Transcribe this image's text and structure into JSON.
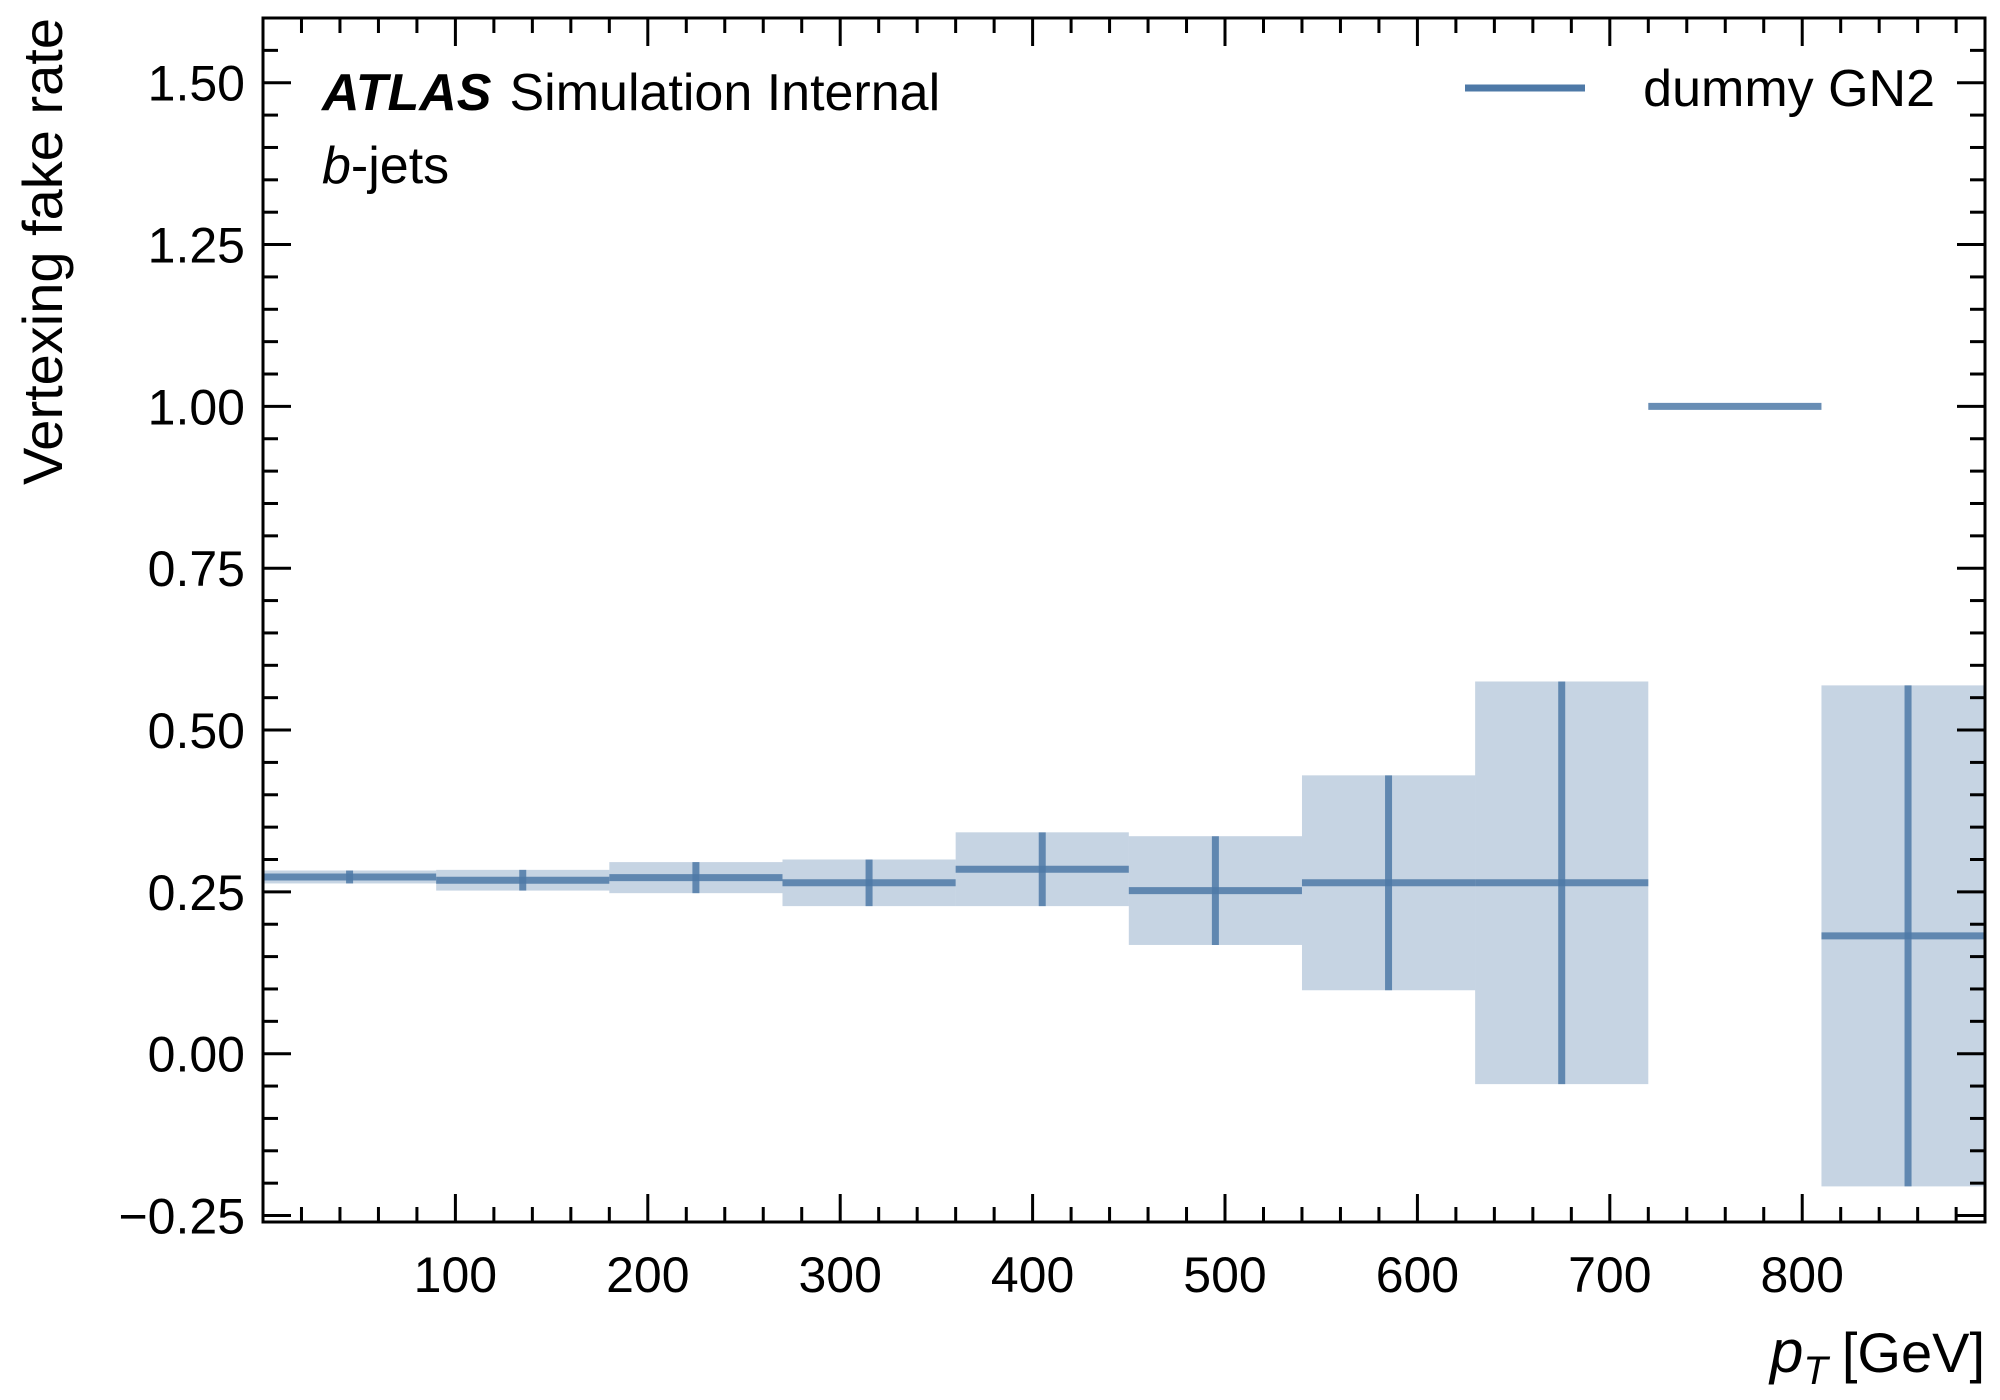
{
  "chart_data": {
    "type": "line",
    "xlabel_symbol": "p",
    "xlabel_subscript": "T",
    "xlabel_unit": "[GeV]",
    "ylabel": "Vertexing fake rate",
    "xlim": [
      0,
      895
    ],
    "ylim": [
      -0.26,
      1.6
    ],
    "xticks": [
      100,
      200,
      300,
      400,
      500,
      600,
      700,
      800
    ],
    "xtick_labels": [
      "100",
      "200",
      "300",
      "400",
      "500",
      "600",
      "700",
      "800"
    ],
    "yticks": [
      -0.25,
      0.0,
      0.25,
      0.5,
      0.75,
      1.0,
      1.25,
      1.5
    ],
    "ytick_labels": [
      "−0.25",
      "0.00",
      "0.25",
      "0.50",
      "0.75",
      "1.00",
      "1.25",
      "1.50"
    ],
    "annotation": {
      "experiment": "ATLAS",
      "status": "Simulation Internal",
      "jet_flavour_symbol": "b",
      "jet_flavour_suffix": "-jets"
    },
    "legend_position": "top-right",
    "series": [
      {
        "name": "dummy GN2",
        "color": "#4e79a7",
        "bins": [
          {
            "x_low": 0,
            "x_high": 90,
            "x": 45,
            "y": 0.273,
            "err_low": 0.263,
            "err_high": 0.283
          },
          {
            "x_low": 90,
            "x_high": 180,
            "x": 135,
            "y": 0.268,
            "err_low": 0.252,
            "err_high": 0.284
          },
          {
            "x_low": 180,
            "x_high": 270,
            "x": 225,
            "y": 0.272,
            "err_low": 0.248,
            "err_high": 0.296
          },
          {
            "x_low": 270,
            "x_high": 360,
            "x": 315,
            "y": 0.264,
            "err_low": 0.228,
            "err_high": 0.3
          },
          {
            "x_low": 360,
            "x_high": 450,
            "x": 405,
            "y": 0.285,
            "err_low": 0.228,
            "err_high": 0.342
          },
          {
            "x_low": 450,
            "x_high": 540,
            "x": 495,
            "y": 0.252,
            "err_low": 0.168,
            "err_high": 0.336
          },
          {
            "x_low": 540,
            "x_high": 630,
            "x": 585,
            "y": 0.264,
            "err_low": 0.098,
            "err_high": 0.43
          },
          {
            "x_low": 630,
            "x_high": 720,
            "x": 675,
            "y": 0.264,
            "err_low": -0.047,
            "err_high": 0.575
          },
          {
            "x_low": 720,
            "x_high": 810,
            "x": 765,
            "y": 1.0,
            "err_low": 1.0,
            "err_high": 1.0
          },
          {
            "x_low": 810,
            "x_high": 900,
            "x": 855,
            "y": 0.182,
            "err_low": -0.205,
            "err_high": 0.569
          }
        ]
      }
    ]
  }
}
